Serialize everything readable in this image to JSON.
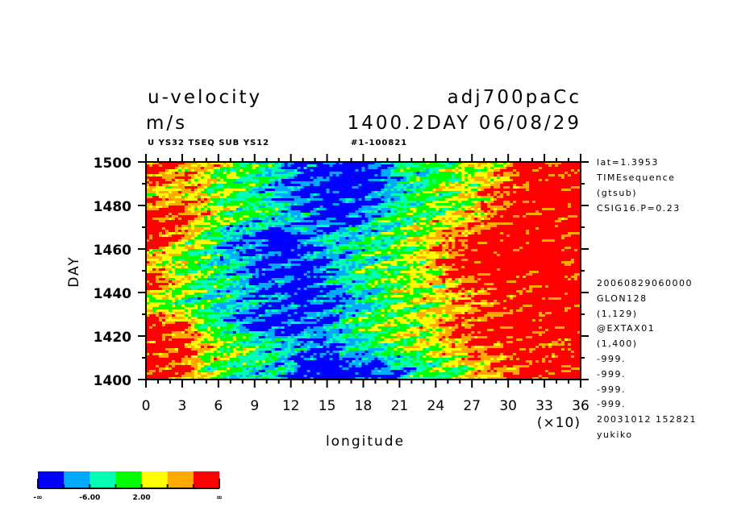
{
  "header": {
    "title_left": "u-velocity",
    "title_right": "adj700paCc",
    "units": "m/s",
    "time_label": "1400.2DAY 06/08/29",
    "subtitle_left": "U YS32 TSEQ SUB YS12",
    "subtitle_right": "#1-100821"
  },
  "info_top": [
    "lat=1.3953",
    "TIMEsequence",
    "(gtsub)",
    "CSIG16.P=0.23"
  ],
  "info_bottom": [
    "20060829060000",
    "GLON128",
    "(1,129)",
    "@EXTAX01",
    "(1,400)",
    "-999.",
    "-999.",
    "-999.",
    "-999.",
    "20031012 152821",
    "yukiko"
  ],
  "colors": [
    "#0000ff",
    "#00aaff",
    "#00ffb4",
    "#00ff00",
    "#ffff00",
    "#ffaa00",
    "#ff0000"
  ],
  "chart_data": {
    "type": "heatmap",
    "xlabel": "longitude",
    "xscale_label": "(×10)",
    "ylabel": "DAY",
    "xlim": [
      0,
      36
    ],
    "ylim": [
      1400,
      1500
    ],
    "xticks": [
      "0",
      "3",
      "6",
      "9",
      "12",
      "15",
      "18",
      "21",
      "24",
      "27",
      "30",
      "33",
      "36"
    ],
    "yticks": [
      "1400",
      "1420",
      "1440",
      "1460",
      "1480",
      "1500"
    ],
    "contour_levels": [
      -10,
      -6,
      -2,
      2,
      6,
      10
    ],
    "legend": {
      "labels": [
        "-∞",
        "-6.00",
        "2.00",
        "∞"
      ],
      "placement": "bottom-left"
    },
    "grid_x_lon": [
      10,
      30,
      50,
      70,
      90,
      110,
      130,
      150,
      170,
      190,
      210,
      230,
      250,
      270,
      290,
      310,
      330,
      350
    ],
    "grid_y_day": [
      1495,
      1485,
      1475,
      1465,
      1455,
      1445,
      1435,
      1425,
      1415,
      1405
    ],
    "values_approx": [
      [
        12,
        8,
        4,
        0,
        -2,
        -6,
        -12,
        -12,
        -14,
        -12,
        -4,
        -2,
        0,
        2,
        6,
        12,
        14,
        14
      ],
      [
        6,
        8,
        4,
        0,
        -4,
        -8,
        -12,
        -14,
        -12,
        -12,
        -6,
        -2,
        2,
        4,
        10,
        14,
        16,
        14
      ],
      [
        14,
        12,
        4,
        0,
        -2,
        -4,
        -8,
        -14,
        -12,
        -6,
        -2,
        0,
        2,
        6,
        10,
        14,
        14,
        12
      ],
      [
        14,
        6,
        0,
        -8,
        -12,
        -14,
        -10,
        -6,
        -4,
        -2,
        0,
        4,
        8,
        12,
        14,
        16,
        14,
        14
      ],
      [
        4,
        2,
        -2,
        -6,
        -10,
        -12,
        -12,
        -10,
        -6,
        -2,
        0,
        4,
        10,
        14,
        14,
        14,
        16,
        14
      ],
      [
        12,
        2,
        -2,
        -4,
        -8,
        -12,
        -14,
        -8,
        -4,
        -2,
        2,
        4,
        6,
        10,
        14,
        14,
        16,
        14
      ],
      [
        2,
        0,
        -4,
        -6,
        -8,
        -10,
        -14,
        -12,
        -8,
        -4,
        0,
        2,
        6,
        8,
        12,
        14,
        16,
        14
      ],
      [
        14,
        10,
        0,
        -6,
        -12,
        -12,
        -10,
        -8,
        -4,
        0,
        2,
        4,
        8,
        12,
        14,
        14,
        12,
        14
      ],
      [
        14,
        12,
        6,
        2,
        -2,
        -6,
        -8,
        -10,
        -6,
        -2,
        0,
        2,
        6,
        10,
        12,
        14,
        14,
        12
      ],
      [
        14,
        12,
        2,
        -2,
        -4,
        -6,
        -12,
        -14,
        -14,
        -12,
        -8,
        -2,
        0,
        4,
        8,
        12,
        14,
        14
      ]
    ]
  }
}
